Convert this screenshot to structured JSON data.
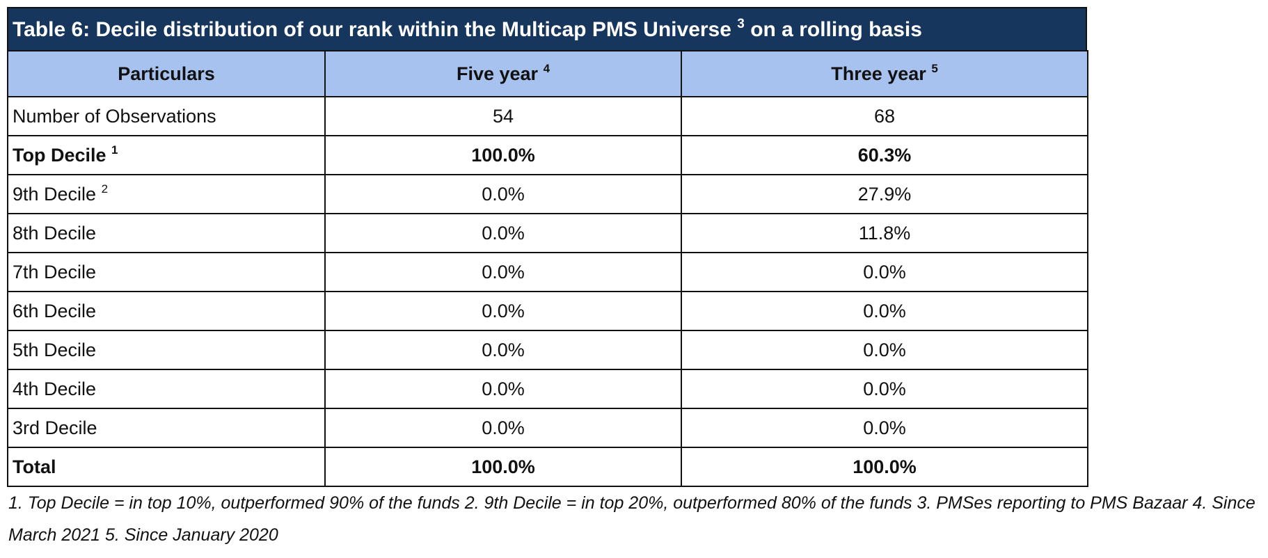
{
  "table": {
    "title": "Table 6: Decile distribution of our rank within the Multicap PMS Universe",
    "title_sup": "3",
    "title_suffix": "on a rolling basis",
    "headers": [
      {
        "label": "Particulars",
        "sup": ""
      },
      {
        "label": "Five year",
        "sup": "4"
      },
      {
        "label": "Three year",
        "sup": "5"
      }
    ],
    "rows": [
      {
        "label": "Number of Observations",
        "sup": "",
        "five_year": "54",
        "three_year": "68",
        "bold": false
      },
      {
        "label": "Top Decile",
        "sup": "1",
        "five_year": "100.0%",
        "three_year": "60.3%",
        "bold": true
      },
      {
        "label": "9th Decile",
        "sup": "2",
        "five_year": "0.0%",
        "three_year": "27.9%",
        "bold": false
      },
      {
        "label": "8th Decile",
        "sup": "",
        "five_year": "0.0%",
        "three_year": "11.8%",
        "bold": false
      },
      {
        "label": "7th Decile",
        "sup": "",
        "five_year": "0.0%",
        "three_year": "0.0%",
        "bold": false
      },
      {
        "label": "6th Decile",
        "sup": "",
        "five_year": "0.0%",
        "three_year": "0.0%",
        "bold": false
      },
      {
        "label": "5th Decile",
        "sup": "",
        "five_year": "0.0%",
        "three_year": "0.0%",
        "bold": false
      },
      {
        "label": "4th Decile",
        "sup": "",
        "five_year": "0.0%",
        "three_year": "0.0%",
        "bold": false
      },
      {
        "label": "3rd Decile",
        "sup": "",
        "five_year": "0.0%",
        "three_year": "0.0%",
        "bold": false
      },
      {
        "label": "Total",
        "sup": "",
        "five_year": "100.0%",
        "three_year": "100.0%",
        "bold": true
      }
    ]
  },
  "footnote": "1. Top Decile = in top 10%,  outperformed 90% of the funds 2. 9th Decile = in top 20%, outperformed 80% of the funds 3. PMSes reporting to PMS Bazaar 4. Since March 2021 5. Since January 2020",
  "colors": {
    "title_background": "#17365d",
    "header_background": "#a7c2ee",
    "border": "#111111"
  }
}
